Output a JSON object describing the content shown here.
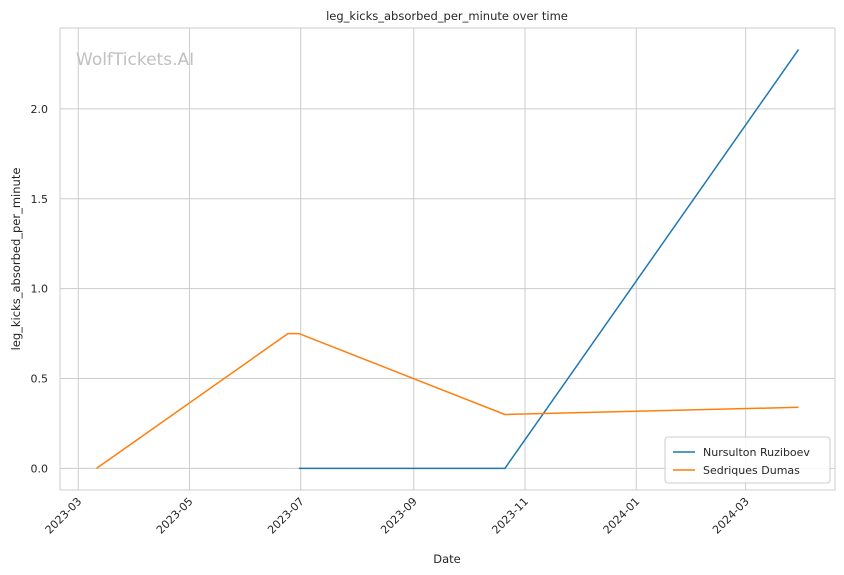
{
  "watermark": "WolfTickets.AI",
  "chart_data": {
    "type": "line",
    "title": "leg_kicks_absorbed_per_minute over time",
    "xlabel": "Date",
    "ylabel": "leg_kicks_absorbed_per_minute",
    "x_ticks": [
      "2023-03",
      "2023-05",
      "2023-07",
      "2023-09",
      "2023-11",
      "2024-01",
      "2024-03"
    ],
    "y_ticks": [
      "0.0",
      "0.5",
      "1.0",
      "1.5",
      "2.0"
    ],
    "ylim": [
      -0.12,
      2.45
    ],
    "xlim": [
      "2023-02-19",
      "2024-04-19"
    ],
    "grid": true,
    "legend_position": "lower-right",
    "series": [
      {
        "name": "Nursulton Ruziboev",
        "color": "#1f77b4",
        "points": [
          {
            "x": "2023-06-30",
            "y": 0.0
          },
          {
            "x": "2023-10-21",
            "y": 0.0
          },
          {
            "x": "2024-03-30",
            "y": 2.33
          }
        ]
      },
      {
        "name": "Sedriques Dumas",
        "color": "#ff7f0e",
        "points": [
          {
            "x": "2023-03-11",
            "y": 0.0
          },
          {
            "x": "2023-06-24",
            "y": 0.75
          },
          {
            "x": "2023-06-30",
            "y": 0.75
          },
          {
            "x": "2023-10-21",
            "y": 0.3
          },
          {
            "x": "2024-03-30",
            "y": 0.34
          }
        ]
      }
    ]
  }
}
